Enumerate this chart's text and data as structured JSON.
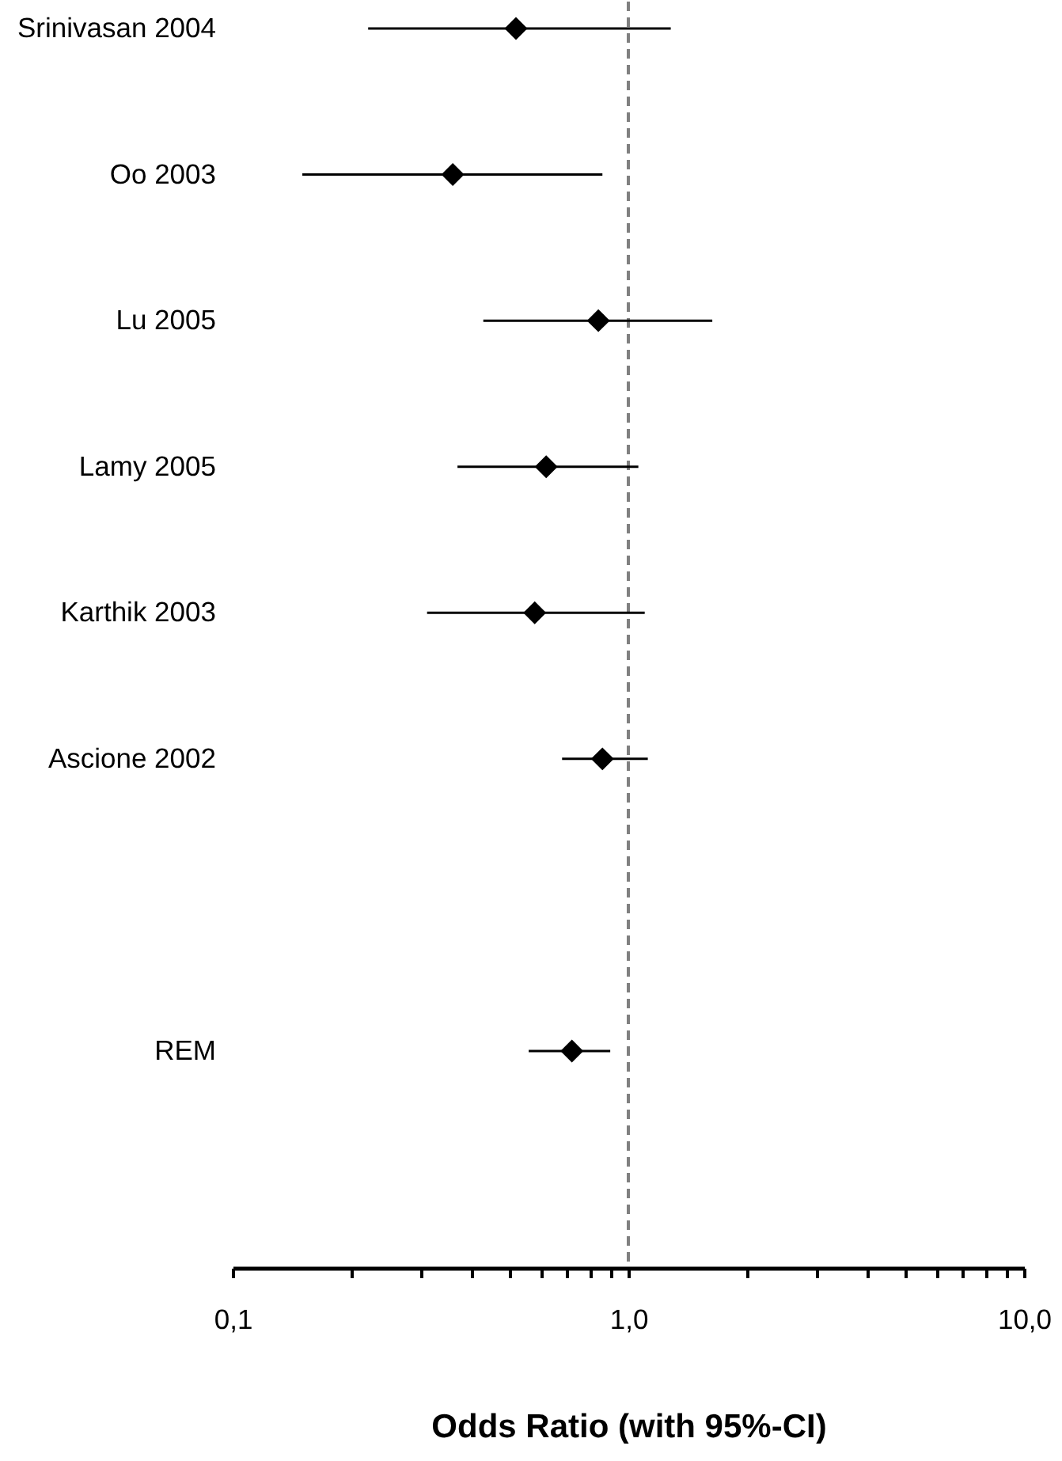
{
  "chart_data": {
    "type": "scatter",
    "orientation": "horizontal",
    "categories": [
      "Srinivasan 2004",
      "Oo 2003",
      "Lu 2005",
      "Lamy 2005",
      "Karthik 2003",
      "Ascione 2002",
      null,
      "REM"
    ],
    "series": [
      {
        "color": "#000000",
        "values": [
          0.52,
          0.36,
          0.84,
          0.62,
          0.58,
          0.86,
          null,
          0.72
        ],
        "errors": [
          [
            0.22,
            1.28
          ],
          [
            0.15,
            0.86
          ],
          [
            0.43,
            1.63
          ],
          [
            0.37,
            1.06
          ],
          [
            0.31,
            1.1
          ],
          [
            0.68,
            1.12
          ],
          null,
          [
            0.56,
            0.9
          ]
        ]
      }
    ],
    "marker": "diamond",
    "log": "x",
    "xlim": [
      0.1,
      10
    ],
    "xticks": [
      {
        "value": 0.1,
        "label": "0,1"
      },
      {
        "value": 0.2,
        "label": null
      },
      {
        "value": 0.3,
        "label": null
      },
      {
        "value": 0.4,
        "label": null
      },
      {
        "value": 0.5,
        "label": null
      },
      {
        "value": 0.6,
        "label": null
      },
      {
        "value": 0.7,
        "label": null
      },
      {
        "value": 0.8,
        "label": null
      },
      {
        "value": 0.9,
        "label": null
      },
      {
        "value": 1,
        "label": "1,0"
      },
      {
        "value": 2,
        "label": null
      },
      {
        "value": 3,
        "label": null
      },
      {
        "value": 4,
        "label": null
      },
      {
        "value": 5,
        "label": null
      },
      {
        "value": 6,
        "label": null
      },
      {
        "value": 7,
        "label": null
      },
      {
        "value": 8,
        "label": null
      },
      {
        "value": 9,
        "label": null
      },
      {
        "value": 10,
        "label": "10,0"
      }
    ],
    "xlabel": "Odds Ratio (with 95%-CI)",
    "ref_lines": [
      {
        "axis": "x",
        "value": 1,
        "color": "#808080",
        "line_style": "dashed"
      }
    ]
  }
}
